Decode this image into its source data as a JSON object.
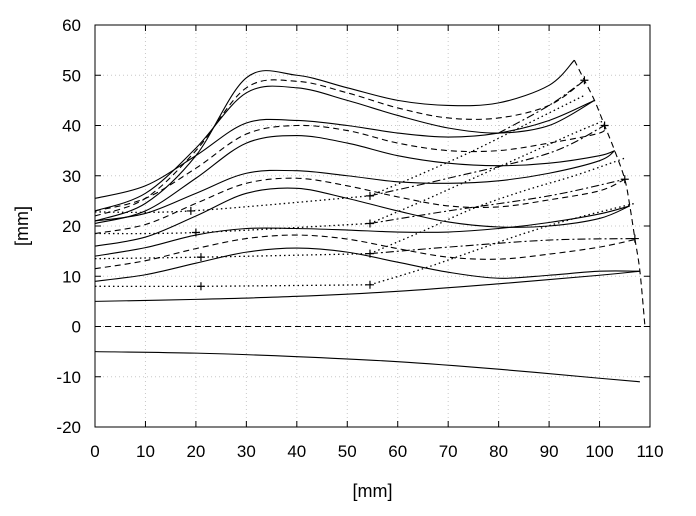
{
  "chart_data": {
    "type": "line",
    "title": "",
    "xlabel": "[mm]",
    "ylabel": "[mm]",
    "xlim": [
      0,
      110
    ],
    "ylim": [
      -20,
      60
    ],
    "xticks": [
      0,
      10,
      20,
      30,
      40,
      50,
      60,
      70,
      80,
      90,
      100,
      110
    ],
    "yticks": [
      -20,
      -10,
      0,
      10,
      20,
      30,
      40,
      50,
      60
    ],
    "grid": true,
    "legend": "none",
    "series": [
      {
        "style": "solid",
        "points": [
          [
            0,
            -5
          ],
          [
            20,
            -5.3
          ],
          [
            40,
            -6
          ],
          [
            60,
            -7
          ],
          [
            80,
            -8.5
          ],
          [
            100,
            -10.3
          ],
          [
            108,
            -11
          ]
        ]
      },
      {
        "style": "dashed",
        "points": [
          [
            0,
            0
          ],
          [
            110,
            0
          ]
        ]
      },
      {
        "style": "solid",
        "points": [
          [
            0,
            5
          ],
          [
            20,
            5.4
          ],
          [
            40,
            6
          ],
          [
            60,
            7
          ],
          [
            80,
            8.5
          ],
          [
            100,
            10.2
          ],
          [
            108,
            11
          ]
        ]
      },
      {
        "style": "solid",
        "points": [
          [
            0,
            9
          ],
          [
            10,
            10.3
          ],
          [
            20,
            12.6
          ],
          [
            30,
            14.8
          ],
          [
            40,
            15.6
          ],
          [
            50,
            14.8
          ],
          [
            60,
            12.8
          ],
          [
            70,
            10.8
          ],
          [
            80,
            9.6
          ],
          [
            90,
            10.2
          ],
          [
            100,
            11
          ],
          [
            108,
            11
          ]
        ]
      },
      {
        "style": "dashed",
        "points": [
          [
            0,
            11.5
          ],
          [
            10,
            13.1
          ],
          [
            20,
            15.5
          ],
          [
            30,
            17.5
          ],
          [
            40,
            18.2
          ],
          [
            50,
            17.4
          ],
          [
            60,
            15.5
          ],
          [
            70,
            13.8
          ],
          [
            80,
            13.4
          ],
          [
            90,
            14.4
          ],
          [
            100,
            15.8
          ],
          [
            107,
            17.3
          ]
        ]
      },
      {
        "style": "solid",
        "points": [
          [
            0,
            14
          ],
          [
            10,
            15.7
          ],
          [
            20,
            18.2
          ],
          [
            30,
            19.5
          ],
          [
            40,
            19.5
          ],
          [
            50,
            19.2
          ],
          [
            60,
            18.8
          ],
          [
            70,
            18.8
          ],
          [
            80,
            19.5
          ],
          [
            90,
            20.7
          ],
          [
            100,
            22.4
          ],
          [
            106,
            24
          ]
        ]
      },
      {
        "style": "solid",
        "points": [
          [
            0,
            16
          ],
          [
            10,
            17.8
          ],
          [
            20,
            22
          ],
          [
            30,
            26.5
          ],
          [
            40,
            27.5
          ],
          [
            50,
            25.5
          ],
          [
            60,
            23
          ],
          [
            70,
            20.8
          ],
          [
            80,
            19.8
          ],
          [
            90,
            20
          ],
          [
            100,
            21.5
          ],
          [
            106,
            24
          ]
        ]
      },
      {
        "style": "dashed",
        "points": [
          [
            0,
            18.5
          ],
          [
            10,
            20.3
          ],
          [
            20,
            24.5
          ],
          [
            30,
            28.5
          ],
          [
            40,
            29.5
          ],
          [
            50,
            28
          ],
          [
            60,
            25.8
          ],
          [
            70,
            24
          ],
          [
            80,
            23.8
          ],
          [
            90,
            25.2
          ],
          [
            100,
            27
          ],
          [
            105,
            29.3
          ]
        ]
      },
      {
        "style": "solid",
        "points": [
          [
            0,
            21
          ],
          [
            10,
            22.5
          ],
          [
            20,
            26.5
          ],
          [
            30,
            30.5
          ],
          [
            40,
            31
          ],
          [
            50,
            30
          ],
          [
            60,
            28.8
          ],
          [
            70,
            28.5
          ],
          [
            80,
            29
          ],
          [
            90,
            30.5
          ],
          [
            100,
            33
          ],
          [
            103,
            35
          ]
        ]
      },
      {
        "style": "solid",
        "points": [
          [
            0,
            20.5
          ],
          [
            10,
            23
          ],
          [
            20,
            29.5
          ],
          [
            30,
            36.5
          ],
          [
            40,
            38
          ],
          [
            50,
            36.5
          ],
          [
            60,
            34
          ],
          [
            70,
            32.5
          ],
          [
            80,
            32
          ],
          [
            90,
            32.5
          ],
          [
            100,
            34
          ],
          [
            103,
            35
          ]
        ]
      },
      {
        "style": "dashed",
        "points": [
          [
            0,
            23
          ],
          [
            10,
            25.5
          ],
          [
            20,
            31.5
          ],
          [
            30,
            38.3
          ],
          [
            40,
            40
          ],
          [
            50,
            39
          ],
          [
            60,
            36.5
          ],
          [
            70,
            35
          ],
          [
            80,
            35
          ],
          [
            90,
            36.5
          ],
          [
            100,
            38.5
          ],
          [
            101,
            40
          ]
        ]
      },
      {
        "style": "solid",
        "points": [
          [
            0,
            25.5
          ],
          [
            10,
            28
          ],
          [
            20,
            34
          ],
          [
            30,
            40.5
          ],
          [
            40,
            41
          ],
          [
            50,
            40
          ],
          [
            60,
            38.5
          ],
          [
            70,
            37.7
          ],
          [
            80,
            38.5
          ],
          [
            90,
            41
          ],
          [
            99,
            45
          ]
        ]
      },
      {
        "style": "solid",
        "points": [
          [
            0,
            23
          ],
          [
            10,
            26.5
          ],
          [
            20,
            35.5
          ],
          [
            30,
            46.5
          ],
          [
            40,
            47.5
          ],
          [
            50,
            45
          ],
          [
            60,
            42
          ],
          [
            70,
            39.5
          ],
          [
            80,
            38.5
          ],
          [
            90,
            40
          ],
          [
            99,
            45
          ]
        ]
      },
      {
        "style": "dashed",
        "points": [
          [
            0,
            22
          ],
          [
            10,
            25.5
          ],
          [
            20,
            35
          ],
          [
            30,
            47.5
          ],
          [
            40,
            48.8
          ],
          [
            50,
            46.5
          ],
          [
            60,
            43.5
          ],
          [
            70,
            41.5
          ],
          [
            80,
            41.5
          ],
          [
            90,
            44
          ],
          [
            97,
            49
          ]
        ]
      },
      {
        "style": "solid",
        "points": [
          [
            0,
            21
          ],
          [
            10,
            24.5
          ],
          [
            20,
            34
          ],
          [
            30,
            49.5
          ],
          [
            40,
            50
          ],
          [
            50,
            47.5
          ],
          [
            60,
            45
          ],
          [
            70,
            44
          ],
          [
            80,
            44.5
          ],
          [
            90,
            48
          ],
          [
            95,
            53
          ]
        ]
      },
      {
        "style": "dashdot",
        "points": [
          [
            54.5,
            14.5
          ],
          [
            70,
            15.8
          ],
          [
            90,
            17.2
          ],
          [
            107,
            17.5
          ]
        ]
      },
      {
        "style": "dashdot",
        "points": [
          [
            54.5,
            20.5
          ],
          [
            70,
            23
          ],
          [
            90,
            26
          ],
          [
            105,
            29.3
          ]
        ]
      },
      {
        "style": "dashdot",
        "points": [
          [
            54.5,
            26
          ],
          [
            70,
            29.5
          ],
          [
            90,
            34.5
          ],
          [
            101,
            40
          ]
        ]
      },
      {
        "style": "dashdot",
        "points": [
          [
            80,
            38.5
          ],
          [
            90,
            44
          ],
          [
            97,
            49
          ]
        ]
      },
      {
        "style": "dotted",
        "points": [
          [
            0,
            8
          ],
          [
            21,
            8
          ],
          [
            54.5,
            8.3
          ]
        ]
      },
      {
        "style": "dotted",
        "points": [
          [
            0,
            13.5
          ],
          [
            21,
            13.8
          ],
          [
            54.5,
            14.5
          ]
        ]
      },
      {
        "style": "dotted",
        "points": [
          [
            0,
            18.5
          ],
          [
            20,
            18.7
          ],
          [
            54.5,
            20.5
          ]
        ]
      },
      {
        "style": "dotted",
        "points": [
          [
            0,
            22.8
          ],
          [
            19,
            23
          ],
          [
            54.5,
            26
          ]
        ]
      },
      {
        "style": "dotted",
        "points": [
          [
            54.5,
            8.3
          ],
          [
            65,
            11.5
          ],
          [
            75,
            15
          ],
          [
            85,
            18.5
          ],
          [
            95,
            21.5
          ],
          [
            107,
            24.5
          ]
        ]
      },
      {
        "style": "dotted",
        "points": [
          [
            54.5,
            14.5
          ],
          [
            65,
            19
          ],
          [
            75,
            23.5
          ],
          [
            85,
            27
          ],
          [
            95,
            30
          ],
          [
            105,
            33.5
          ]
        ]
      },
      {
        "style": "dotted",
        "points": [
          [
            54.5,
            20.5
          ],
          [
            65,
            25
          ],
          [
            75,
            29.5
          ],
          [
            85,
            34
          ],
          [
            95,
            38.5
          ],
          [
            101,
            41
          ]
        ]
      },
      {
        "style": "dotted",
        "points": [
          [
            54.5,
            26
          ],
          [
            65,
            30.5
          ],
          [
            75,
            35
          ],
          [
            85,
            40
          ],
          [
            95,
            45
          ],
          [
            97,
            46
          ]
        ]
      },
      {
        "style": "dashed",
        "points": [
          [
            95,
            53
          ],
          [
            97,
            49
          ],
          [
            99,
            45
          ],
          [
            101,
            40
          ],
          [
            103,
            35
          ],
          [
            105,
            29.3
          ],
          [
            106,
            24
          ],
          [
            107,
            17.5
          ],
          [
            108,
            11
          ],
          [
            109,
            0
          ]
        ]
      }
    ],
    "markers": [
      [
        21,
        8
      ],
      [
        54.5,
        8.3
      ],
      [
        21,
        13.8
      ],
      [
        54.5,
        14.5
      ],
      [
        20,
        18.7
      ],
      [
        54.5,
        20.5
      ],
      [
        19,
        23
      ],
      [
        54.5,
        26
      ],
      [
        97,
        49
      ],
      [
        101,
        40
      ],
      [
        105,
        29.3
      ],
      [
        107,
        17.5
      ]
    ]
  }
}
